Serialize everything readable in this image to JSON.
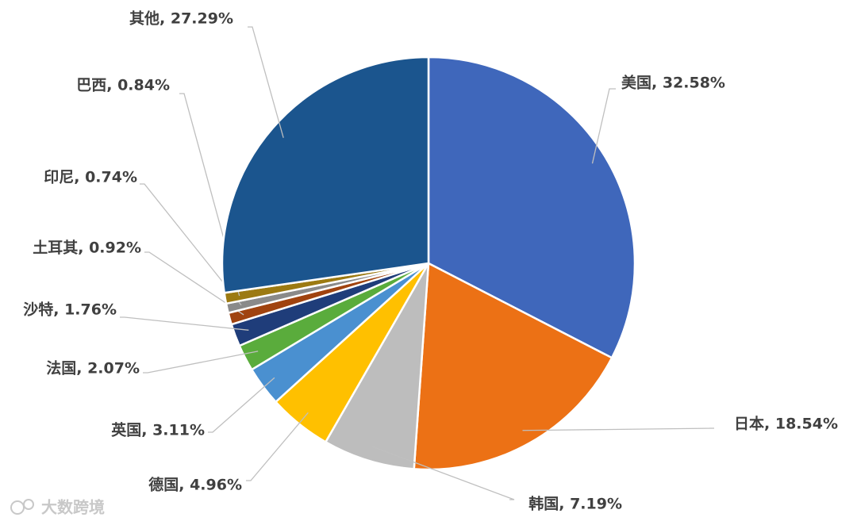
{
  "chart_data": {
    "type": "pie",
    "values": [
      32.58,
      18.54,
      7.19,
      4.96,
      3.11,
      2.07,
      1.76,
      0.92,
      0.74,
      0.84,
      27.29
    ],
    "value_labels": [
      "美国, 32.58%",
      "日本, 18.54%",
      "韩国, 7.19%",
      "德国, 4.96%",
      "英国, 3.11%",
      "法国, 2.07%",
      "沙特, 1.76%",
      "土耳其, 0.92%",
      "印尼, 0.74%",
      "巴西, 0.84%",
      "其他, 27.29%"
    ],
    "colors": [
      "#3f67bb",
      "#ec7115",
      "#bdbdbd",
      "#ffc000",
      "#4a90d0",
      "#5aac3c",
      "#1f3d7a",
      "#a0430f",
      "#8a8a8a",
      "#9c7a12",
      "#1b558e"
    ]
  },
  "watermark": "大数跨境"
}
